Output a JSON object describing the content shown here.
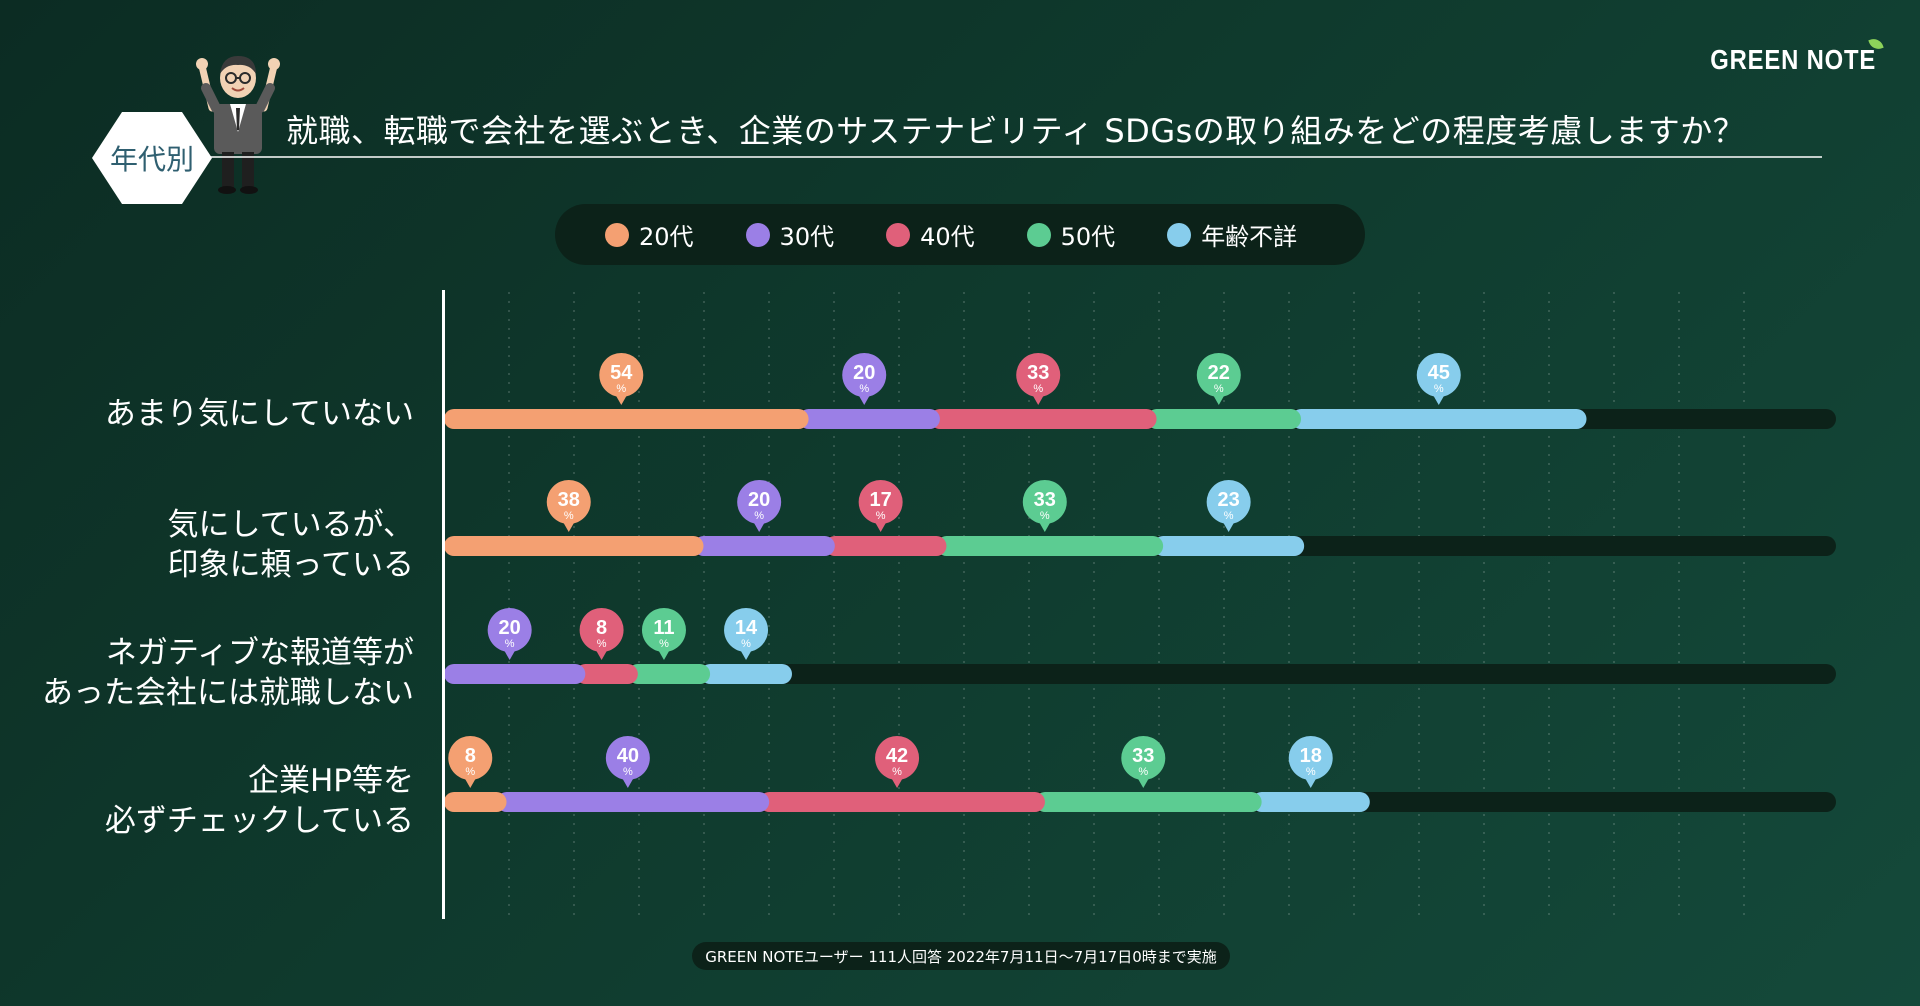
{
  "brand": {
    "name": "GREEN NOTE"
  },
  "badge": {
    "label": "年代別"
  },
  "title": "就職、転職で会社を選ぶとき、企業のサステナビリティ SDGsの取り組みをどの程度考慮しますか？",
  "legend": [
    {
      "label": "20代",
      "color": "#f4a072"
    },
    {
      "label": "30代",
      "color": "#9b7fe6"
    },
    {
      "label": "40代",
      "color": "#e0607a"
    },
    {
      "label": "50代",
      "color": "#5ccc92"
    },
    {
      "label": "年齢不詳",
      "color": "#87cdec"
    }
  ],
  "categories": [
    {
      "line1": "あまり気にしていない",
      "line2": ""
    },
    {
      "line1": "気にしているが、",
      "line2": "印象に頼っている"
    },
    {
      "line1": "ネガティブな報道等が",
      "line2": "あった会社には就職しない"
    },
    {
      "line1": "企業HP等を",
      "line2": "必ずチェックしている"
    }
  ],
  "chart_data": {
    "type": "bar",
    "stacked": true,
    "orientation": "horizontal",
    "title": "就職、転職で会社を選ぶとき、企業のサステナビリティ SDGsの取り組みをどの程度考慮しますか？",
    "categories": [
      "あまり気にしていない",
      "気にしているが、印象に頼っている",
      "ネガティブな報道等があった会社には就職しない",
      "企業HP等を必ずチェックしている"
    ],
    "series": [
      {
        "name": "20代",
        "values": [
          54,
          38,
          0,
          8
        ]
      },
      {
        "name": "30代",
        "values": [
          20,
          20,
          20,
          40
        ]
      },
      {
        "name": "40代",
        "values": [
          33,
          17,
          8,
          42
        ]
      },
      {
        "name": "50代",
        "values": [
          22,
          33,
          11,
          33
        ]
      },
      {
        "name": "年齢不詳",
        "values": [
          45,
          23,
          14,
          18
        ]
      }
    ],
    "value_unit": "%",
    "xlim": [
      0,
      212
    ],
    "gridlines": "vertical dotted"
  },
  "footnote": "GREEN NOTEユーザー 111人回答 2022年7月11日〜7月17日0時まで実施"
}
